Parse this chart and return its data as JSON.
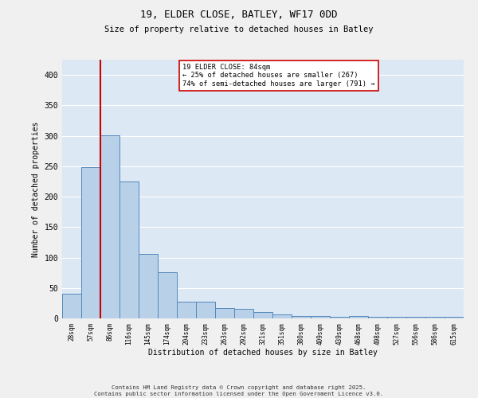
{
  "title1": "19, ELDER CLOSE, BATLEY, WF17 0DD",
  "title2": "Size of property relative to detached houses in Batley",
  "xlabel": "Distribution of detached houses by size in Batley",
  "ylabel": "Number of detached properties",
  "bar_values": [
    40,
    248,
    301,
    225,
    106,
    76,
    28,
    27,
    17,
    16,
    10,
    7,
    4,
    4,
    2,
    4,
    2,
    3,
    2,
    3,
    2
  ],
  "bar_labels": [
    "28sqm",
    "57sqm",
    "86sqm",
    "116sqm",
    "145sqm",
    "174sqm",
    "204sqm",
    "233sqm",
    "263sqm",
    "292sqm",
    "321sqm",
    "351sqm",
    "380sqm",
    "409sqm",
    "439sqm",
    "468sqm",
    "498sqm",
    "527sqm",
    "556sqm",
    "586sqm",
    "615sqm"
  ],
  "bar_color": "#b8d0e8",
  "bar_edge_color": "#5588bb",
  "vline_x_index": 2,
  "vline_color": "#cc0000",
  "annotation_text": "19 ELDER CLOSE: 84sqm\n← 25% of detached houses are smaller (267)\n74% of semi-detached houses are larger (791) →",
  "annotation_box_color": "#ffffff",
  "annotation_box_edge": "#cc0000",
  "ylim": [
    0,
    425
  ],
  "yticks": [
    0,
    50,
    100,
    150,
    200,
    250,
    300,
    350,
    400
  ],
  "background_color": "#dde8f5",
  "grid_color": "#ffffff",
  "footer1": "Contains HM Land Registry data © Crown copyright and database right 2025.",
  "footer2": "Contains public sector information licensed under the Open Government Licence v3.0."
}
